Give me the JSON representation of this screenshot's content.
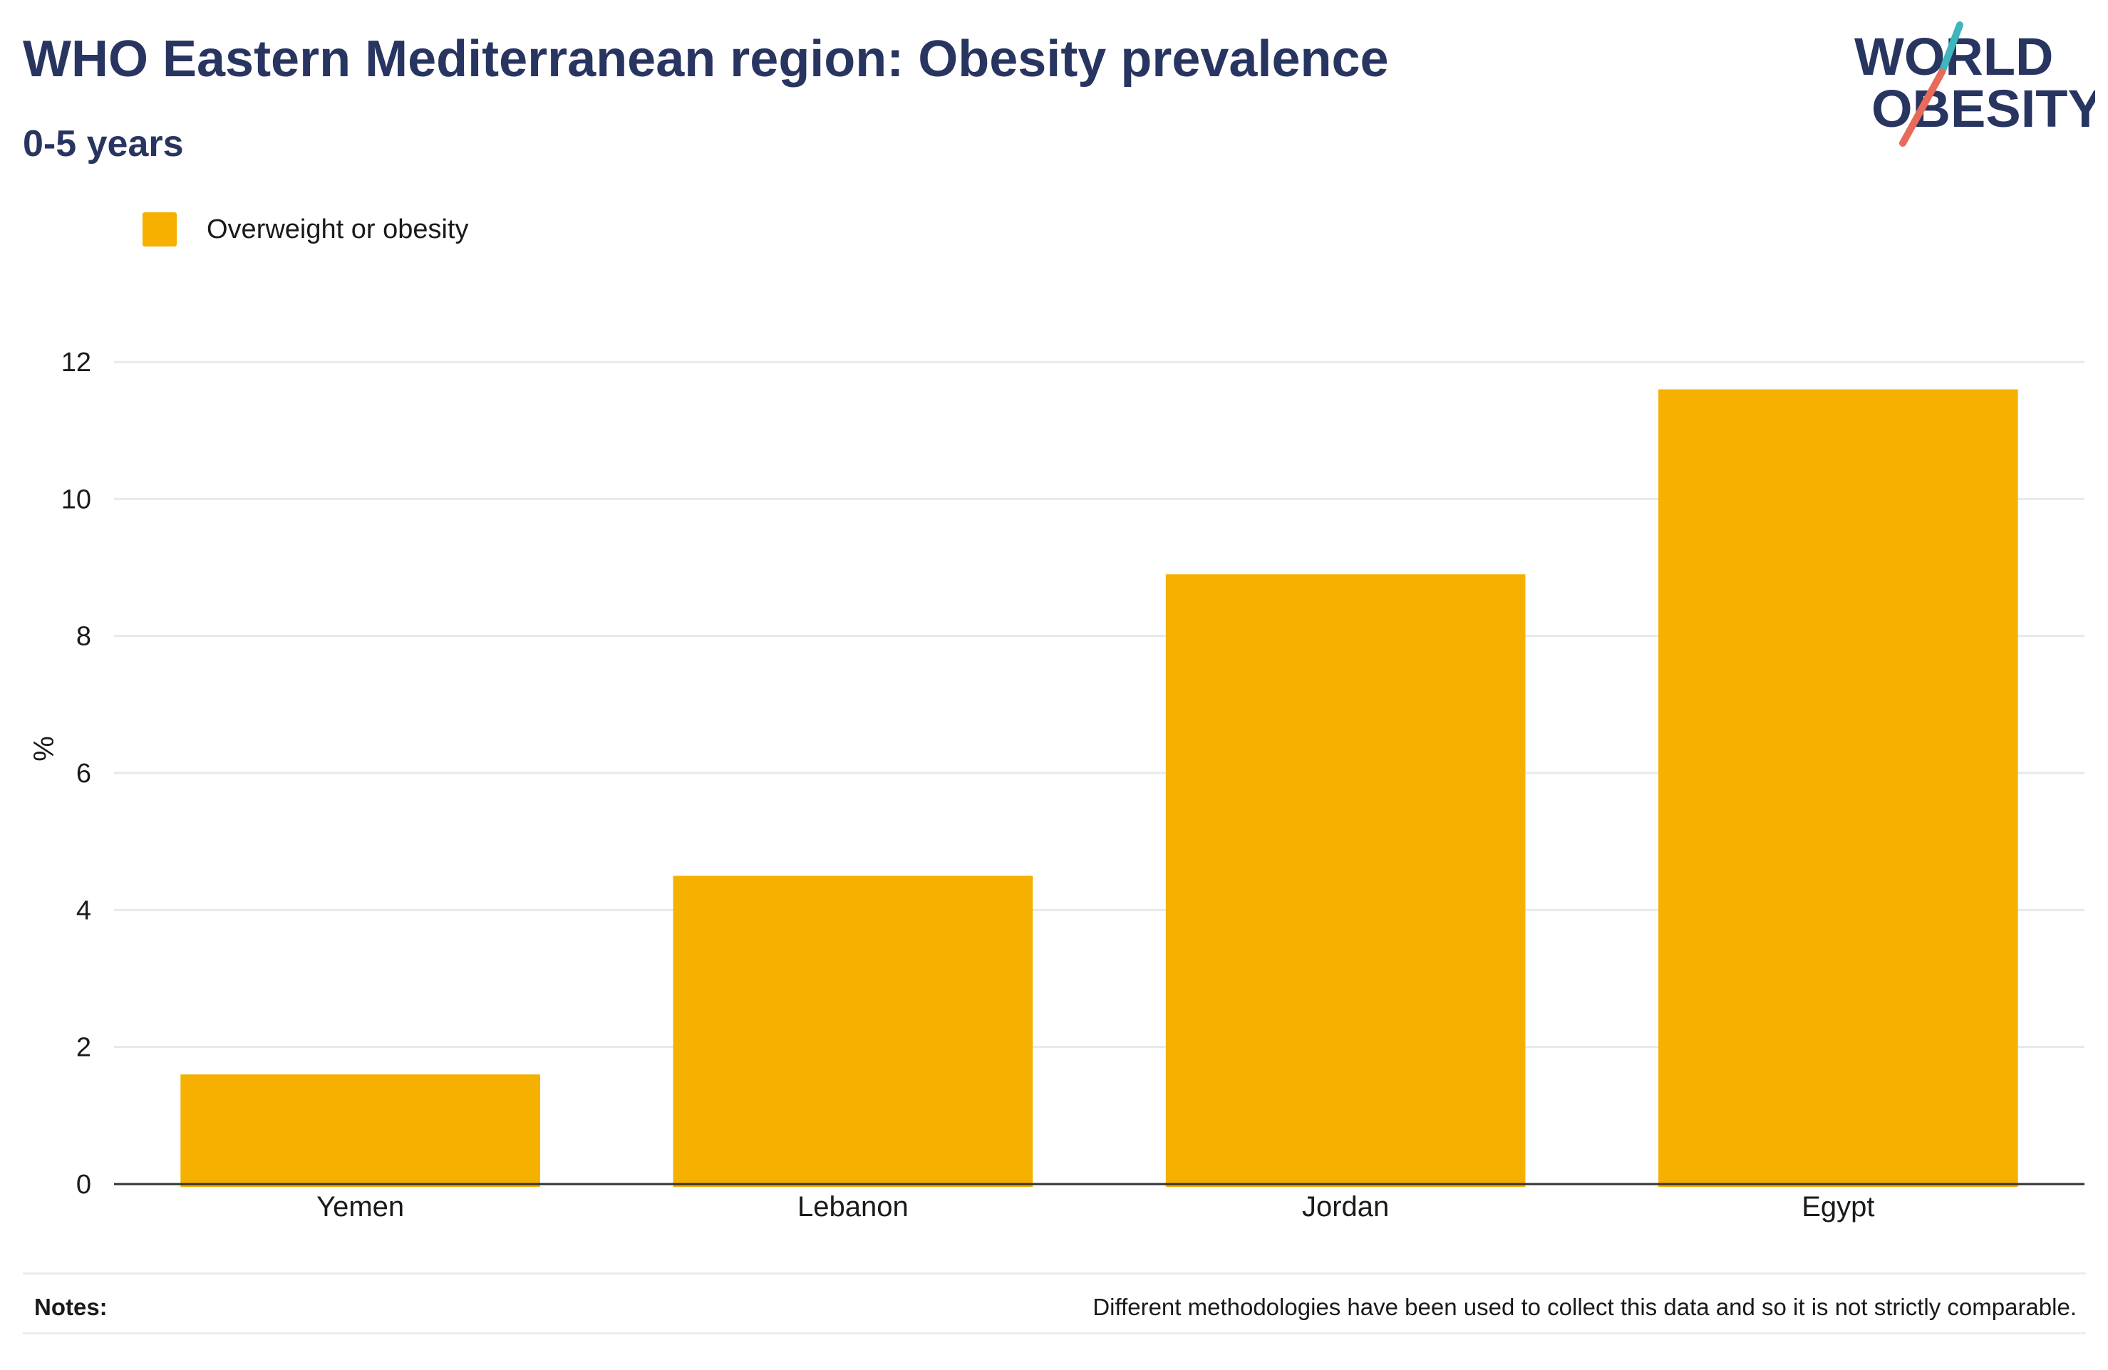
{
  "header": {
    "title": "WHO Eastern Mediterranean region: Obesity prevalence",
    "subtitle": "0-5 years"
  },
  "logo": {
    "line1": "WORLD",
    "line2": "OBESITY",
    "colors": {
      "text": "#283561",
      "slash_top": "#3fb6bd",
      "slash_bottom": "#e86a5a"
    }
  },
  "colors": {
    "bar": "#F5B000",
    "grid": "#e6eaec",
    "axis": "#333333"
  },
  "chart_data": {
    "type": "bar",
    "categories": [
      "Yemen",
      "Lebanon",
      "Jordan",
      "Egypt"
    ],
    "series": [
      {
        "name": "Overweight or obesity",
        "values": [
          1.6,
          4.5,
          8.9,
          11.6
        ]
      }
    ],
    "ylabel": "%",
    "ylim": [
      0,
      12.5
    ],
    "yticks": [
      "0",
      "2",
      "4",
      "6",
      "8",
      "10",
      "12"
    ],
    "grid": true,
    "legend": "top-left"
  },
  "notes": {
    "label": "Notes:",
    "text": "Different methodologies have been used to collect this data and so it is not strictly comparable."
  }
}
